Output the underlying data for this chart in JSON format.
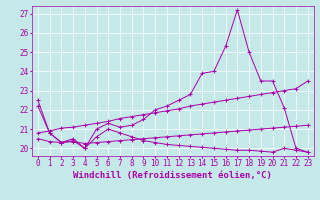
{
  "xlabel": "Windchill (Refroidissement éolien,°C)",
  "x_ticks": [
    0,
    1,
    2,
    3,
    4,
    5,
    6,
    7,
    8,
    9,
    10,
    11,
    12,
    13,
    14,
    15,
    16,
    17,
    18,
    19,
    20,
    21,
    22,
    23
  ],
  "ylim": [
    19.6,
    27.4
  ],
  "xlim": [
    -0.5,
    23.5
  ],
  "yticks": [
    20,
    21,
    22,
    23,
    24,
    25,
    26,
    27
  ],
  "background_color": "#c5e8e8",
  "line_color": "#aa00aa",
  "lines": [
    {
      "x": [
        0,
        1,
        2,
        3,
        4,
        5,
        6,
        7,
        8,
        9,
        10,
        11,
        12,
        13,
        14,
        15,
        16,
        17,
        18,
        19,
        20,
        21,
        22,
        23
      ],
      "y": [
        22.5,
        20.8,
        20.3,
        20.5,
        20.0,
        21.0,
        21.3,
        21.1,
        21.2,
        21.5,
        22.0,
        22.2,
        22.5,
        22.8,
        23.9,
        24.0,
        25.3,
        27.2,
        25.0,
        23.5,
        23.5,
        22.1,
        20.0,
        19.8
      ]
    },
    {
      "x": [
        0,
        1,
        2,
        3,
        4,
        5,
        6,
        7,
        8,
        9,
        10,
        11,
        12,
        13,
        14,
        15,
        16,
        17,
        18,
        19,
        20,
        21,
        22,
        23
      ],
      "y": [
        20.8,
        20.9,
        21.05,
        21.1,
        21.2,
        21.3,
        21.4,
        21.55,
        21.65,
        21.75,
        21.85,
        21.95,
        22.05,
        22.2,
        22.3,
        22.4,
        22.5,
        22.6,
        22.7,
        22.8,
        22.9,
        23.0,
        23.1,
        23.5
      ]
    },
    {
      "x": [
        0,
        1,
        2,
        3,
        4,
        5,
        6,
        7,
        8,
        9,
        10,
        11,
        12,
        13,
        14,
        15,
        16,
        17,
        18,
        19,
        20,
        21,
        22,
        23
      ],
      "y": [
        20.5,
        20.35,
        20.3,
        20.35,
        20.25,
        20.3,
        20.35,
        20.4,
        20.45,
        20.5,
        20.55,
        20.6,
        20.65,
        20.7,
        20.75,
        20.8,
        20.85,
        20.9,
        20.95,
        21.0,
        21.05,
        21.1,
        21.15,
        21.2
      ]
    },
    {
      "x": [
        0,
        1,
        2,
        3,
        4,
        5,
        6,
        7,
        8,
        9,
        10,
        11,
        12,
        13,
        14,
        15,
        16,
        17,
        18,
        19,
        20,
        21,
        22,
        23
      ],
      "y": [
        22.2,
        20.8,
        20.3,
        20.4,
        20.0,
        20.6,
        21.0,
        20.8,
        20.6,
        20.4,
        20.3,
        20.2,
        20.15,
        20.1,
        20.05,
        20.0,
        19.95,
        19.9,
        19.9,
        19.85,
        19.8,
        20.0,
        19.9,
        19.8
      ]
    }
  ],
  "grid_color": "#ffffff",
  "tick_fontsize": 5.5,
  "xlabel_fontsize": 6.5,
  "tick_color": "#aa00aa"
}
